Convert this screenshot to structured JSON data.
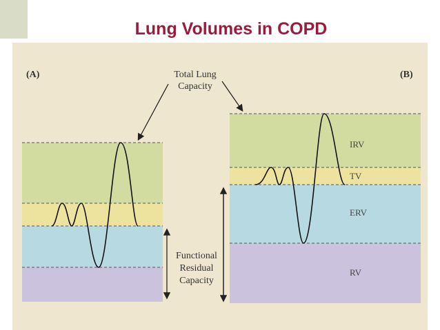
{
  "title": "Lung Volumes in COPD",
  "panels": [
    {
      "label": "(A)"
    },
    {
      "label": "(B)"
    }
  ],
  "total_lung_capacity": [
    "Total Lung",
    "Capacity"
  ],
  "functional_residual_capacity": [
    "Functional",
    "Residual",
    "Capacity"
  ],
  "volumes": [
    "IRV",
    "TV",
    "ERV",
    "RV"
  ]
}
